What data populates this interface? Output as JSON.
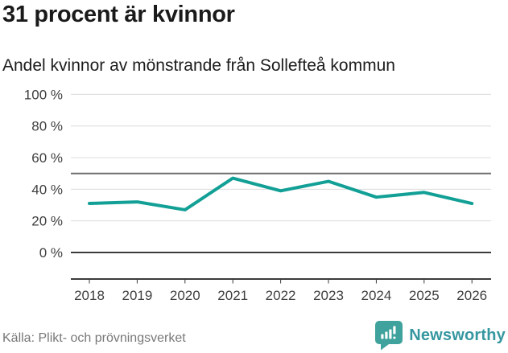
{
  "chart_data": {
    "type": "line",
    "title": "31 procent är kvinnor",
    "subtitle": "Andel kvinnor av mönstrande från Sollefteå kommun",
    "x": [
      2018,
      2019,
      2020,
      2021,
      2022,
      2023,
      2024,
      2025,
      2026
    ],
    "series": [
      {
        "name": "Andel kvinnor av mönstrande",
        "values": [
          31,
          32,
          27,
          47,
          39,
          45,
          35,
          38,
          31
        ]
      }
    ],
    "unit": "%",
    "ylim": [
      0,
      100
    ],
    "yticks": [
      0,
      20,
      40,
      60,
      80,
      100
    ],
    "ytick_suffix": " %",
    "reference_line": 50,
    "grid": true,
    "legend": "none",
    "colors": {
      "line": "#12a096",
      "grid": "#dcdcdc",
      "reference": "#6f6f6f",
      "axis": "#3c3c3c",
      "tick_text": "#404040"
    }
  },
  "footer": {
    "source": "Källa: Plikt- och prövningsverket",
    "brand": "Newsworthy",
    "brand_icon": "newsworthy-speech-bubble-bar-chart-icon",
    "brand_colors": {
      "icon": "#3fa29c",
      "text": "#3697a0"
    }
  }
}
